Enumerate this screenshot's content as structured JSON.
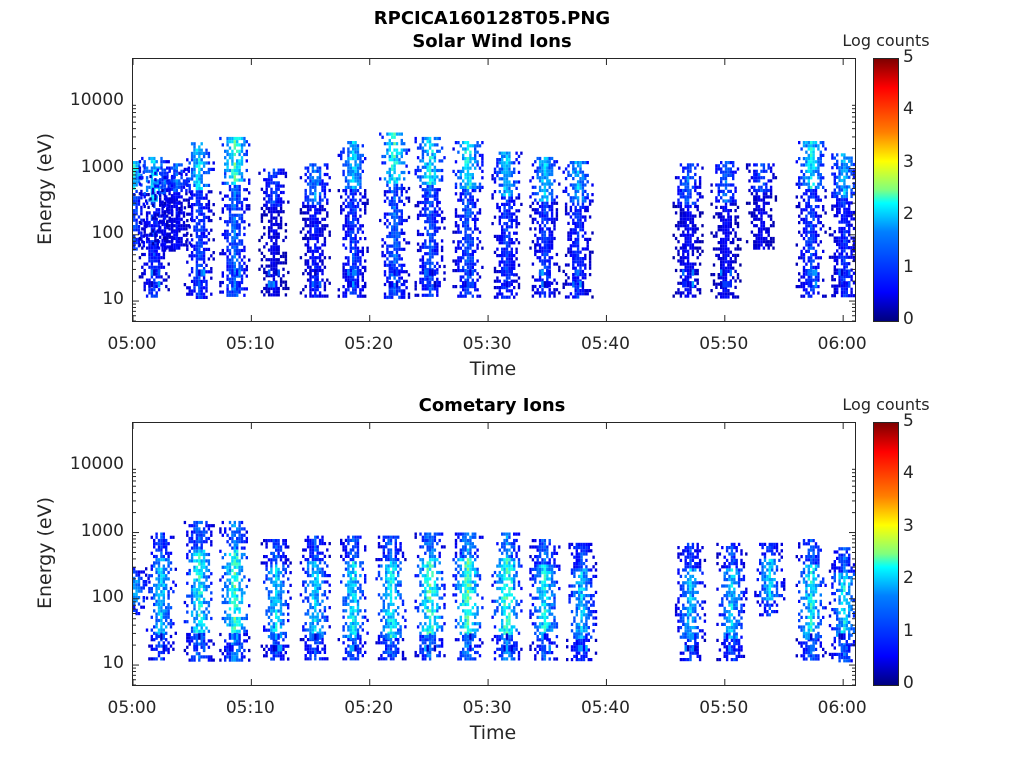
{
  "figure_title": "RPCICA160128T05.PNG",
  "colors": {
    "colormap": [
      "#00007f",
      "#0000ff",
      "#007fff",
      "#00ffff",
      "#7fff7f",
      "#ffff00",
      "#ff7f00",
      "#ff0000",
      "#7f0000"
    ]
  },
  "chart_data": [
    {
      "type": "heatmap",
      "title": "Solar Wind Ions",
      "xlabel": "Time",
      "ylabel": "Energy (eV)",
      "x_ticks": [
        "05:00",
        "05:10",
        "05:20",
        "05:30",
        "05:40",
        "05:50",
        "06:00"
      ],
      "y_ticks": [
        "10",
        "100",
        "1000",
        "10000"
      ],
      "y_scale": "log",
      "ylim": [
        5,
        45000
      ],
      "xlim_minutes": [
        0,
        61
      ],
      "colorbar": {
        "label": "Log counts",
        "ticks": [
          "0",
          "1",
          "2",
          "3",
          "4",
          "5"
        ],
        "range": [
          0,
          5
        ]
      },
      "data_gap_minutes": [
        38.7,
        46.0
      ],
      "bursts": [
        {
          "t": 0.0,
          "top_energy": 1300,
          "peak_log_counts": 2.2,
          "low_energy_band": false
        },
        {
          "t": 1.7,
          "top_energy": 1500,
          "peak_log_counts": 2.0,
          "low_energy_band": true
        },
        {
          "t": 2.6,
          "top_energy": 1000,
          "peak_log_counts": 1.3,
          "low_energy_band": false
        },
        {
          "t": 3.6,
          "top_energy": 1200,
          "peak_log_counts": 1.4,
          "low_energy_band": false
        },
        {
          "t": 5.5,
          "top_energy": 2500,
          "peak_log_counts": 2.1,
          "low_energy_band": true
        },
        {
          "t": 8.5,
          "top_energy": 3000,
          "peak_log_counts": 2.6,
          "low_energy_band": true
        },
        {
          "t": 11.8,
          "top_energy": 1000,
          "peak_log_counts": 1.2,
          "low_energy_band": true
        },
        {
          "t": 15.3,
          "top_energy": 1200,
          "peak_log_counts": 1.6,
          "low_energy_band": true
        },
        {
          "t": 18.5,
          "top_energy": 2600,
          "peak_log_counts": 2.1,
          "low_energy_band": true
        },
        {
          "t": 22.0,
          "top_energy": 3500,
          "peak_log_counts": 2.5,
          "low_energy_band": true
        },
        {
          "t": 25.0,
          "top_energy": 3000,
          "peak_log_counts": 2.3,
          "low_energy_band": true
        },
        {
          "t": 28.2,
          "top_energy": 2600,
          "peak_log_counts": 2.4,
          "low_energy_band": true
        },
        {
          "t": 31.5,
          "top_energy": 1800,
          "peak_log_counts": 2.0,
          "low_energy_band": true
        },
        {
          "t": 34.7,
          "top_energy": 1500,
          "peak_log_counts": 2.0,
          "low_energy_band": true
        },
        {
          "t": 37.5,
          "top_energy": 1300,
          "peak_log_counts": 1.9,
          "low_energy_band": true
        },
        {
          "t": 46.8,
          "top_energy": 1200,
          "peak_log_counts": 1.4,
          "low_energy_band": true
        },
        {
          "t": 50.0,
          "top_energy": 1300,
          "peak_log_counts": 1.4,
          "low_energy_band": true
        },
        {
          "t": 53.0,
          "top_energy": 1200,
          "peak_log_counts": 1.3,
          "low_energy_band": false
        },
        {
          "t": 57.2,
          "top_energy": 2600,
          "peak_log_counts": 2.2,
          "low_energy_band": true
        },
        {
          "t": 60.0,
          "top_energy": 1700,
          "peak_log_counts": 1.9,
          "low_energy_band": true
        }
      ]
    },
    {
      "type": "heatmap",
      "title": "Cometary Ions",
      "xlabel": "Time",
      "ylabel": "Energy (eV)",
      "x_ticks": [
        "05:00",
        "05:10",
        "05:20",
        "05:30",
        "05:40",
        "05:50",
        "06:00"
      ],
      "y_ticks": [
        "10",
        "100",
        "1000",
        "10000"
      ],
      "y_scale": "log",
      "ylim": [
        5,
        45000
      ],
      "xlim_minutes": [
        0,
        61
      ],
      "colorbar": {
        "label": "Log counts",
        "ticks": [
          "0",
          "1",
          "2",
          "3",
          "4",
          "5"
        ],
        "range": [
          0,
          5
        ]
      },
      "data_gap_minutes": [
        38.7,
        46.0
      ],
      "bursts": [
        {
          "t": 0.0,
          "top_energy": 300,
          "peak_log_counts": 1.8,
          "low_energy_band": false
        },
        {
          "t": 2.3,
          "top_energy": 1000,
          "peak_log_counts": 2.0,
          "low_energy_band": true
        },
        {
          "t": 5.5,
          "top_energy": 1500,
          "peak_log_counts": 2.4,
          "low_energy_band": true
        },
        {
          "t": 8.5,
          "top_energy": 1500,
          "peak_log_counts": 2.6,
          "low_energy_band": true
        },
        {
          "t": 12.0,
          "top_energy": 800,
          "peak_log_counts": 2.1,
          "low_energy_band": true
        },
        {
          "t": 15.3,
          "top_energy": 900,
          "peak_log_counts": 2.1,
          "low_energy_band": true
        },
        {
          "t": 18.5,
          "top_energy": 900,
          "peak_log_counts": 2.2,
          "low_energy_band": true
        },
        {
          "t": 21.7,
          "top_energy": 900,
          "peak_log_counts": 2.3,
          "low_energy_band": true
        },
        {
          "t": 25.0,
          "top_energy": 1000,
          "peak_log_counts": 2.7,
          "low_energy_band": true
        },
        {
          "t": 28.2,
          "top_energy": 1000,
          "peak_log_counts": 2.8,
          "low_energy_band": true
        },
        {
          "t": 31.5,
          "top_energy": 1000,
          "peak_log_counts": 2.7,
          "low_energy_band": true
        },
        {
          "t": 34.7,
          "top_energy": 800,
          "peak_log_counts": 2.3,
          "low_energy_band": true
        },
        {
          "t": 37.8,
          "top_energy": 700,
          "peak_log_counts": 2.0,
          "low_energy_band": true
        },
        {
          "t": 47.0,
          "top_energy": 700,
          "peak_log_counts": 1.9,
          "low_energy_band": true
        },
        {
          "t": 50.5,
          "top_energy": 700,
          "peak_log_counts": 2.0,
          "low_energy_band": true
        },
        {
          "t": 53.7,
          "top_energy": 700,
          "peak_log_counts": 2.0,
          "low_energy_band": false
        },
        {
          "t": 57.2,
          "top_energy": 800,
          "peak_log_counts": 2.3,
          "low_energy_band": true
        },
        {
          "t": 60.0,
          "top_energy": 600,
          "peak_log_counts": 2.2,
          "low_energy_band": true
        }
      ]
    }
  ]
}
